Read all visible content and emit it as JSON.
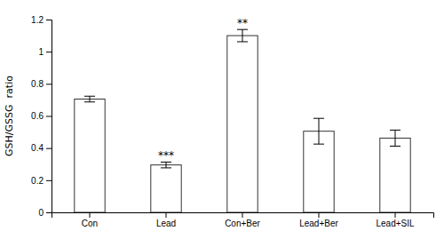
{
  "chart_data": {
    "type": "bar",
    "categories": [
      "Con",
      "Lead",
      "Con+Ber",
      "Lead+Ber",
      "Lead+SIL"
    ],
    "values": [
      0.705,
      0.295,
      1.1,
      0.505,
      0.462
    ],
    "errors": [
      0.018,
      0.018,
      0.038,
      0.08,
      0.05
    ],
    "color": "white",
    "ylabel": "GSH/GSSG  ratio",
    "ylim": [
      0,
      1.2
    ],
    "yticks": [
      0,
      0.2,
      0.4,
      0.6,
      0.8,
      1,
      1.2
    ],
    "annotations": [
      {
        "text": "***",
        "x": "Lead"
      },
      {
        "text": "**",
        "x": "Con+Ber"
      }
    ],
    "grid": false
  }
}
